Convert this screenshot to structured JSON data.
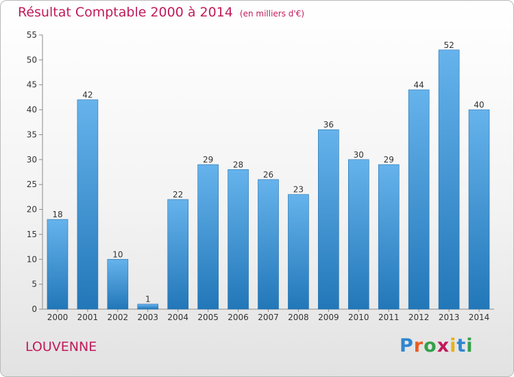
{
  "header": {
    "title": "Résultat Comptable 2000 à 2014",
    "subtitle": "(en milliers d'€)"
  },
  "commune": "LOUVENNE",
  "logo": {
    "text": "Proxiti"
  },
  "colors": {
    "title": "#c01a5a",
    "bar_top": "#66b3ec",
    "bar_bottom": "#2277b8"
  },
  "chart_data": {
    "type": "bar",
    "title": "Résultat Comptable 2000 à 2014",
    "subtitle": "(en milliers d'€)",
    "xlabel": "",
    "ylabel": "",
    "categories": [
      "2000",
      "2001",
      "2002",
      "2003",
      "2004",
      "2005",
      "2006",
      "2007",
      "2008",
      "2009",
      "2010",
      "2011",
      "2012",
      "2013",
      "2014"
    ],
    "values": [
      18,
      42,
      10,
      1,
      22,
      29,
      28,
      26,
      23,
      36,
      30,
      29,
      44,
      52,
      40
    ],
    "ylim": [
      0,
      55
    ],
    "yticks": [
      0,
      5,
      10,
      15,
      20,
      25,
      30,
      35,
      40,
      45,
      50,
      55
    ],
    "grid": false
  }
}
